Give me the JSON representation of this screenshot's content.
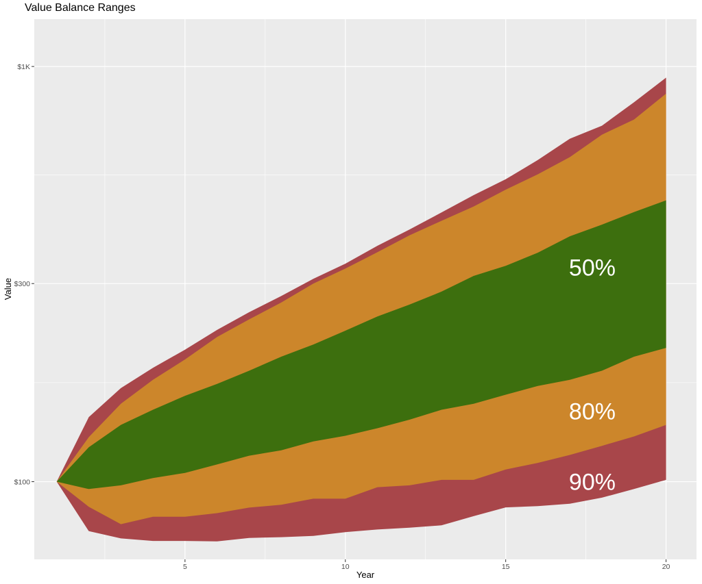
{
  "chart_data": {
    "type": "area",
    "title": "Value Balance Ranges",
    "xlabel": "Year",
    "ylabel": "Value",
    "y_scale": "log",
    "xlim": [
      0.3,
      20.95
    ],
    "ylim": [
      65,
      1300
    ],
    "x_ticks": [
      5,
      10,
      15,
      20
    ],
    "x_tick_labels": [
      "5",
      "10",
      "15",
      "20"
    ],
    "y_ticks": [
      100,
      300,
      1000
    ],
    "y_tick_labels": [
      "$100",
      "$300",
      "$1K"
    ],
    "x": [
      1,
      2,
      3,
      4,
      5,
      6,
      7,
      8,
      9,
      10,
      11,
      12,
      13,
      14,
      15,
      16,
      17,
      18,
      19,
      20
    ],
    "series": [
      {
        "name": "90%",
        "fill": "#a8464a",
        "label": "90%",
        "label_x": 17.7,
        "label_y": 100,
        "lower": [
          100,
          76,
          73,
          72,
          72,
          71.8,
          73.2,
          73.5,
          74,
          75.6,
          76.7,
          77.5,
          78.5,
          82.6,
          86.7,
          87.3,
          88.5,
          91.5,
          96,
          101
        ],
        "upper": [
          100,
          143,
          168,
          188,
          208,
          232,
          256,
          280,
          308,
          335,
          370,
          405,
          445,
          490,
          535,
          595,
          670,
          720,
          820,
          940
        ]
      },
      {
        "name": "80%",
        "fill": "#cc862b",
        "label": "80%",
        "label_x": 17.7,
        "label_y": 148,
        "lower": [
          100,
          87,
          79,
          82.3,
          82.3,
          84,
          86.6,
          88,
          91,
          91,
          97,
          98,
          101,
          101,
          107,
          111,
          116,
          122,
          128.5,
          137
        ],
        "upper": [
          100,
          128,
          154,
          176,
          197,
          223,
          246,
          270,
          300,
          326,
          357,
          392,
          425,
          460,
          505,
          550,
          605,
          685,
          745,
          860
        ]
      },
      {
        "name": "50%",
        "fill": "#3d6f0e",
        "label": "50%",
        "label_x": 17.7,
        "label_y": 328,
        "lower": [
          100,
          96,
          98,
          102,
          105,
          110,
          115.5,
          119,
          125,
          129,
          134.5,
          141,
          149,
          154,
          162,
          170,
          176,
          185,
          200,
          210
        ],
        "upper": [
          100,
          121,
          137,
          149,
          161,
          172,
          185,
          200,
          214,
          231,
          250,
          267,
          287,
          313,
          331,
          356,
          390,
          416,
          446,
          476
        ]
      }
    ],
    "grid": true,
    "background": "#ebebeb",
    "grid_color": "#ffffff"
  }
}
